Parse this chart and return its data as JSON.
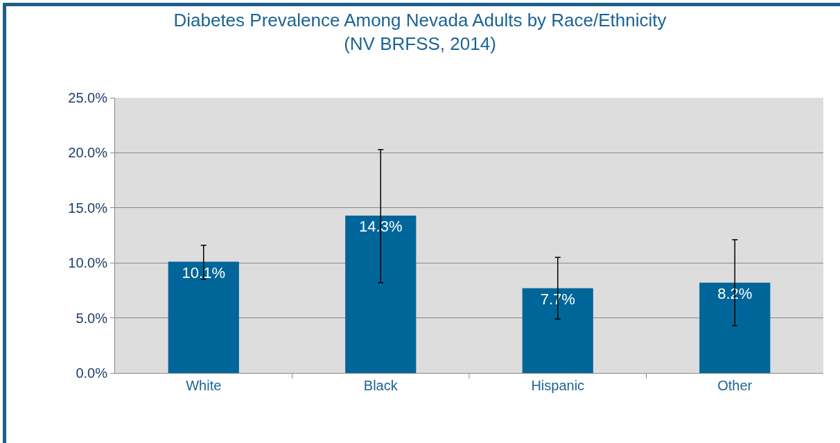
{
  "chart_data": {
    "type": "bar",
    "title": "Diabetes Prevalence Among Nevada Adults by Race/Ethnicity\n(NV BRFSS, 2014)",
    "categories": [
      "White",
      "Black",
      "Hispanic",
      "Other"
    ],
    "values": [
      10.1,
      14.3,
      7.7,
      8.2
    ],
    "value_labels": [
      "10.1%",
      "14.3%",
      "7.7%",
      "8.2%"
    ],
    "errors": [
      [
        8.5,
        11.6
      ],
      [
        8.2,
        20.3
      ],
      [
        4.9,
        10.5
      ],
      [
        4.3,
        12.1
      ]
    ],
    "color": "#006699",
    "ylim": [
      0,
      25
    ],
    "yticks": [
      {
        "value": 0,
        "label": "0.0%"
      },
      {
        "value": 5,
        "label": "5.0%"
      },
      {
        "value": 10,
        "label": "10.0%"
      },
      {
        "value": 15,
        "label": "15.0%"
      },
      {
        "value": 20,
        "label": "20.0%"
      },
      {
        "value": 25,
        "label": "25.0%"
      }
    ],
    "grid": "y"
  }
}
